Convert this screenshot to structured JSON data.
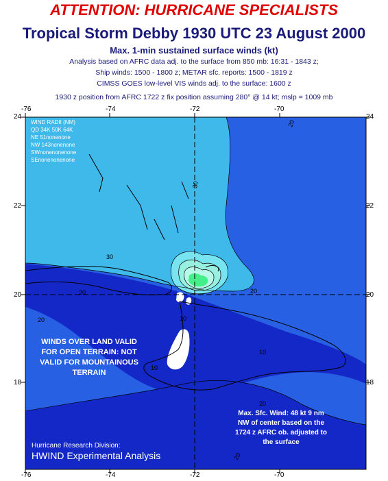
{
  "header": {
    "attention": "ATTENTION: HURRICANE SPECIALISTS",
    "title": "Tropical Storm Debby 1930 UTC 23 August 2000",
    "subtitle": "Max. 1-min sustained surface winds (kt)",
    "notes": [
      "Analysis based on AFRC data adj. to the surface from 850 mb: 16:31 - 1843 z;",
      "Ship winds: 1500 - 1800 z; METAR sfc. reports: 1500 - 1819 z",
      "CIMSS GOES low-level VIS winds adj. to the surface: 1600 z",
      "1930 z position from AFRC 1722 z fix position assuming 280° @ 14 kt; mslp = 1009 mb"
    ]
  },
  "axes": {
    "lon_ticks": [
      "-76",
      "-74",
      "-72",
      "-70"
    ],
    "lat_ticks": [
      "24",
      "22",
      "20",
      "18"
    ]
  },
  "wind_radii": {
    "title": "WIND RADII (NM)",
    "header": "QD 34K 50K 64K",
    "rows": [
      "NE   51nonenone",
      "NW 143nonenone",
      "SWnonenonenone",
      "SEnonenonenone"
    ]
  },
  "contour_labels": [
    "20",
    "30",
    "30",
    "20",
    "20",
    "20",
    "10",
    "10",
    "10",
    "20",
    "20"
  ],
  "land_note": [
    "WINDS OVER LAND VALID",
    "FOR OPEN TERRAIN: NOT",
    "VALID FOR MOUNTAINOUS",
    "TERRAIN"
  ],
  "max_wind_note": [
    "Max. Sfc. Wind: 48 kt 9 nm",
    "NW of center based on the",
    "1724 z AFRC ob. adjusted to",
    "the surface"
  ],
  "credit": {
    "org": "Hurricane Research Division:",
    "product": "HWIND Experimental Analysis"
  },
  "colors": {
    "c10": "#1428c8",
    "c20": "#2860e4",
    "c30": "#3fb8ea",
    "c35": "#78e4f0",
    "c45": "#98f0e0",
    "core": "#44ee88",
    "attention": "#e00000",
    "title": "#1a1a7a"
  }
}
